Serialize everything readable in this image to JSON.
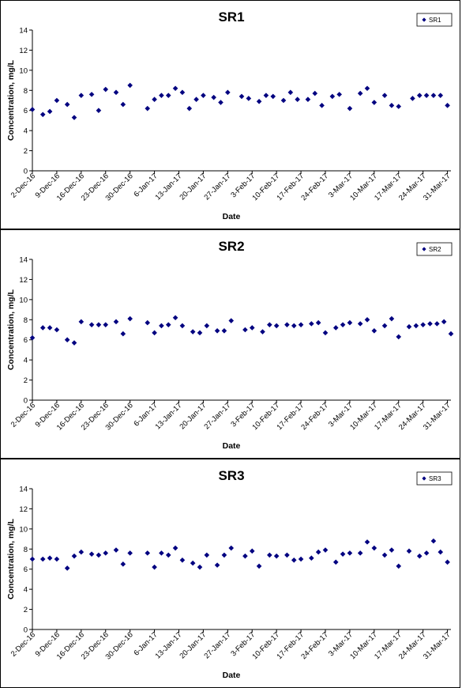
{
  "chart_data": [
    {
      "type": "scatter",
      "title": "SR1",
      "xlabel": "Date",
      "ylabel": "Concentration, mg/L",
      "ylim": [
        0,
        14
      ],
      "yticks": [
        0,
        2,
        4,
        6,
        8,
        10,
        12,
        14
      ],
      "xlim": [
        "2016-12-02",
        "2017-04-01"
      ],
      "xticks": [
        "2-Dec-16",
        "9-Dec-16",
        "16-Dec-16",
        "23-Dec-16",
        "30-Dec-16",
        "6-Jan-17",
        "13-Jan-17",
        "20-Jan-17",
        "27-Jan-17",
        "3-Feb-17",
        "10-Feb-17",
        "17-Feb-17",
        "24-Feb-17",
        "3-Mar-17",
        "10-Mar-17",
        "17-Mar-17",
        "24-Mar-17",
        "31-Mar-17"
      ],
      "legend": "top-right",
      "color": "#000080",
      "series": [
        {
          "name": "SR1",
          "x": [
            "2016-12-02",
            "2016-12-05",
            "2016-12-07",
            "2016-12-09",
            "2016-12-12",
            "2016-12-14",
            "2016-12-16",
            "2016-12-19",
            "2016-12-21",
            "2016-12-23",
            "2016-12-26",
            "2016-12-28",
            "2016-12-30",
            "2017-01-04",
            "2017-01-06",
            "2017-01-08",
            "2017-01-10",
            "2017-01-12",
            "2017-01-14",
            "2017-01-16",
            "2017-01-18",
            "2017-01-20",
            "2017-01-23",
            "2017-01-25",
            "2017-01-27",
            "2017-01-31",
            "2017-02-02",
            "2017-02-05",
            "2017-02-07",
            "2017-02-09",
            "2017-02-12",
            "2017-02-14",
            "2017-02-16",
            "2017-02-19",
            "2017-02-21",
            "2017-02-23",
            "2017-02-26",
            "2017-02-28",
            "2017-03-03",
            "2017-03-06",
            "2017-03-08",
            "2017-03-10",
            "2017-03-13",
            "2017-03-15",
            "2017-03-17",
            "2017-03-21",
            "2017-03-23",
            "2017-03-25",
            "2017-03-27",
            "2017-03-29",
            "2017-03-31"
          ],
          "y": [
            6.1,
            5.6,
            5.9,
            7.0,
            6.6,
            5.3,
            7.5,
            7.6,
            6.0,
            8.1,
            7.8,
            6.6,
            8.5,
            6.2,
            7.1,
            7.5,
            7.5,
            8.2,
            7.8,
            6.2,
            7.1,
            7.5,
            7.3,
            6.8,
            7.8,
            7.4,
            7.2,
            6.9,
            7.5,
            7.4,
            7.0,
            7.8,
            7.1,
            7.1,
            7.7,
            6.5,
            7.4,
            7.6,
            6.2,
            7.7,
            8.2,
            6.8,
            7.5,
            6.5,
            6.4,
            7.2,
            7.5,
            7.5,
            7.5,
            7.5,
            6.5
          ]
        }
      ]
    },
    {
      "type": "scatter",
      "title": "SR2",
      "xlabel": "Date",
      "ylabel": "Concentration, mg/L",
      "ylim": [
        0,
        14
      ],
      "yticks": [
        0,
        2,
        4,
        6,
        8,
        10,
        12,
        14
      ],
      "xlim": [
        "2016-12-02",
        "2017-04-01"
      ],
      "xticks": [
        "2-Dec-16",
        "9-Dec-16",
        "16-Dec-16",
        "23-Dec-16",
        "30-Dec-16",
        "6-Jan-17",
        "13-Jan-17",
        "20-Jan-17",
        "27-Jan-17",
        "3-Feb-17",
        "10-Feb-17",
        "17-Feb-17",
        "24-Feb-17",
        "3-Mar-17",
        "10-Mar-17",
        "17-Mar-17",
        "24-Mar-17",
        "31-Mar-17"
      ],
      "legend": "top-right",
      "color": "#000080",
      "series": [
        {
          "name": "SR2",
          "x": [
            "2016-12-02",
            "2016-12-05",
            "2016-12-07",
            "2016-12-09",
            "2016-12-12",
            "2016-12-14",
            "2016-12-16",
            "2016-12-19",
            "2016-12-21",
            "2016-12-23",
            "2016-12-26",
            "2016-12-28",
            "2016-12-30",
            "2017-01-04",
            "2017-01-06",
            "2017-01-08",
            "2017-01-10",
            "2017-01-12",
            "2017-01-14",
            "2017-01-17",
            "2017-01-19",
            "2017-01-21",
            "2017-01-24",
            "2017-01-26",
            "2017-01-28",
            "2017-02-01",
            "2017-02-03",
            "2017-02-06",
            "2017-02-08",
            "2017-02-10",
            "2017-02-13",
            "2017-02-15",
            "2017-02-17",
            "2017-02-20",
            "2017-02-22",
            "2017-02-24",
            "2017-02-27",
            "2017-03-01",
            "2017-03-03",
            "2017-03-06",
            "2017-03-08",
            "2017-03-10",
            "2017-03-13",
            "2017-03-15",
            "2017-03-17",
            "2017-03-20",
            "2017-03-22",
            "2017-03-24",
            "2017-03-26",
            "2017-03-28",
            "2017-03-30",
            "2017-04-01"
          ],
          "y": [
            6.2,
            7.2,
            7.2,
            7.0,
            6.0,
            5.7,
            7.8,
            7.5,
            7.5,
            7.5,
            7.8,
            6.6,
            8.1,
            7.7,
            6.7,
            7.4,
            7.5,
            8.2,
            7.4,
            6.8,
            6.7,
            7.4,
            6.9,
            6.9,
            7.9,
            7.0,
            7.2,
            6.8,
            7.5,
            7.4,
            7.5,
            7.4,
            7.5,
            7.6,
            7.7,
            6.7,
            7.2,
            7.5,
            7.7,
            7.6,
            8.0,
            6.9,
            7.4,
            8.1,
            6.3,
            7.3,
            7.4,
            7.5,
            7.6,
            7.6,
            7.8,
            6.6
          ]
        }
      ]
    },
    {
      "type": "scatter",
      "title": "SR3",
      "xlabel": "Date",
      "ylabel": "Concentration, mg/L",
      "ylim": [
        0,
        14
      ],
      "yticks": [
        0,
        2,
        4,
        6,
        8,
        10,
        12,
        14
      ],
      "xlim": [
        "2016-12-02",
        "2017-04-01"
      ],
      "xticks": [
        "2-Dec-16",
        "9-Dec-16",
        "16-Dec-16",
        "23-Dec-16",
        "30-Dec-16",
        "6-Jan-17",
        "13-Jan-17",
        "20-Jan-17",
        "27-Jan-17",
        "3-Feb-17",
        "10-Feb-17",
        "17-Feb-17",
        "24-Feb-17",
        "3-Mar-17",
        "10-Mar-17",
        "17-Mar-17",
        "24-Mar-17",
        "31-Mar-17"
      ],
      "legend": "top-right",
      "color": "#000080",
      "series": [
        {
          "name": "SR3",
          "x": [
            "2016-12-02",
            "2016-12-05",
            "2016-12-07",
            "2016-12-09",
            "2016-12-12",
            "2016-12-14",
            "2016-12-16",
            "2016-12-19",
            "2016-12-21",
            "2016-12-23",
            "2016-12-26",
            "2016-12-28",
            "2016-12-30",
            "2017-01-04",
            "2017-01-06",
            "2017-01-08",
            "2017-01-10",
            "2017-01-12",
            "2017-01-14",
            "2017-01-17",
            "2017-01-19",
            "2017-01-21",
            "2017-01-24",
            "2017-01-26",
            "2017-01-28",
            "2017-02-01",
            "2017-02-03",
            "2017-02-05",
            "2017-02-08",
            "2017-02-10",
            "2017-02-13",
            "2017-02-15",
            "2017-02-17",
            "2017-02-20",
            "2017-02-22",
            "2017-02-24",
            "2017-02-27",
            "2017-03-01",
            "2017-03-03",
            "2017-03-06",
            "2017-03-08",
            "2017-03-10",
            "2017-03-13",
            "2017-03-15",
            "2017-03-17",
            "2017-03-20",
            "2017-03-23",
            "2017-03-25",
            "2017-03-27",
            "2017-03-29",
            "2017-03-31"
          ],
          "y": [
            7.0,
            7.0,
            7.1,
            7.0,
            6.1,
            7.3,
            7.7,
            7.5,
            7.4,
            7.6,
            7.9,
            6.5,
            7.6,
            7.6,
            6.2,
            7.6,
            7.4,
            8.1,
            6.9,
            6.6,
            6.2,
            7.4,
            6.4,
            7.4,
            8.1,
            7.3,
            7.8,
            6.3,
            7.4,
            7.3,
            7.4,
            6.9,
            7.0,
            7.1,
            7.7,
            7.9,
            6.7,
            7.5,
            7.6,
            7.6,
            8.7,
            8.1,
            7.4,
            7.9,
            6.3,
            7.8,
            7.3,
            7.6,
            8.8,
            7.7,
            6.7
          ]
        }
      ]
    }
  ]
}
